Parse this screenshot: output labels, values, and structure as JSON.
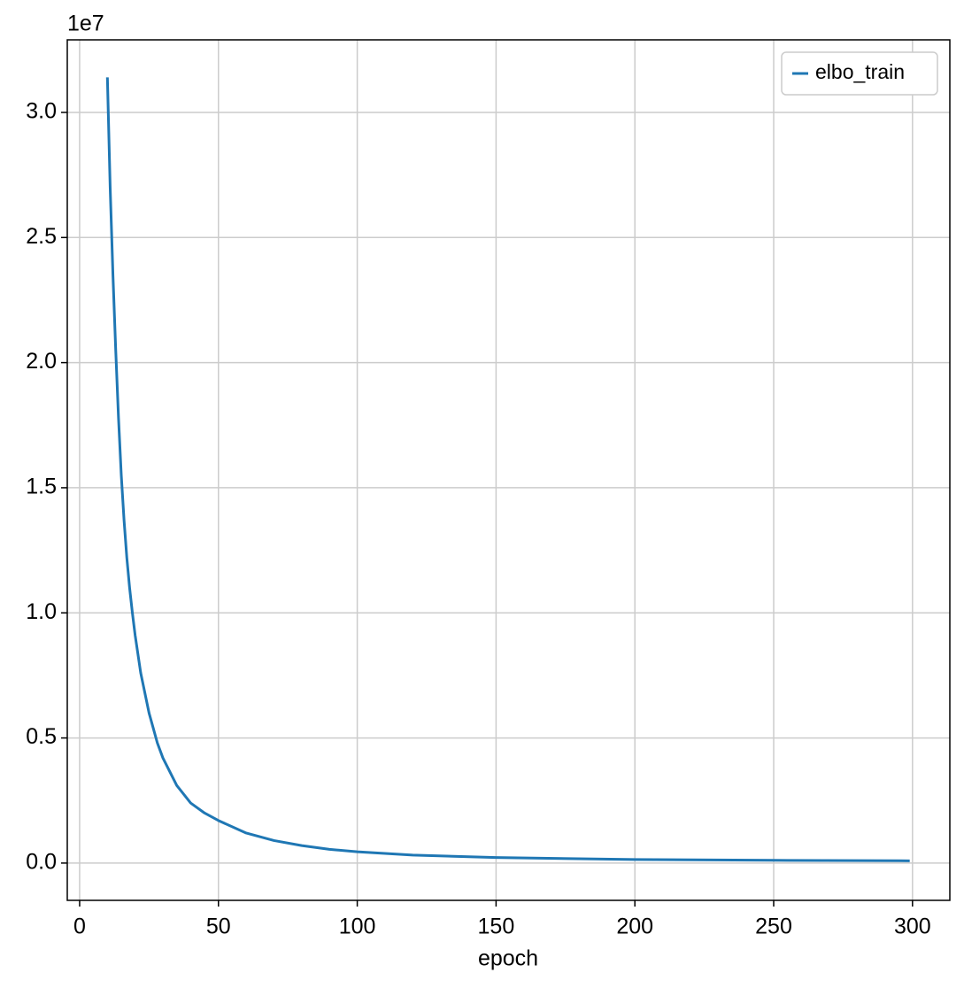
{
  "chart_data": {
    "type": "line",
    "x_label": "epoch",
    "y_offset_label": "1e7",
    "x": [
      10,
      11,
      12,
      13,
      14,
      15,
      16,
      17,
      18,
      19,
      20,
      22,
      25,
      28,
      30,
      35,
      40,
      45,
      50,
      60,
      70,
      80,
      90,
      100,
      120,
      150,
      200,
      250,
      299
    ],
    "series": [
      {
        "name": "elbo_train",
        "color": "#1f77b4",
        "values": [
          3.14,
          2.7,
          2.35,
          2.05,
          1.78,
          1.55,
          1.37,
          1.22,
          1.1,
          1.0,
          0.91,
          0.76,
          0.6,
          0.48,
          0.42,
          0.31,
          0.24,
          0.2,
          0.17,
          0.12,
          0.09,
          0.07,
          0.055,
          0.045,
          0.032,
          0.022,
          0.014,
          0.011,
          0.009
        ]
      }
    ],
    "xlim": [
      -4.45,
      313.45
    ],
    "ylim": [
      -0.149,
      3.29
    ],
    "xticks": [
      0,
      50,
      100,
      150,
      200,
      250,
      300
    ],
    "yticks": [
      {
        "value": 0,
        "label": "0.0"
      },
      0.5,
      {
        "value": 1,
        "label": "1.0"
      },
      1.5,
      {
        "value": 2,
        "label": "2.0"
      },
      2.5,
      {
        "value": 3,
        "label": "3.0"
      }
    ],
    "grid": true,
    "legend": "upper right"
  }
}
